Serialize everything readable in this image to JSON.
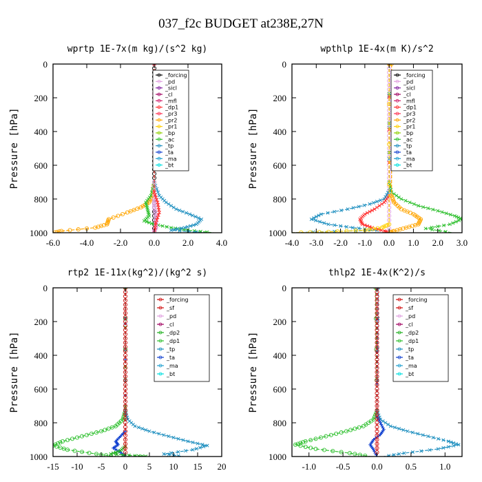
{
  "figure_title": "037_f2c  BUDGET at238E,27N",
  "colors": {
    "forcing": "#000000",
    "pd": "#e0a0e0",
    "sicl": "#8020a0",
    "cl": "#a00060",
    "mfl": "#d0206b",
    "dp1": "#ff3030",
    "pr3": "#ff3050",
    "pr2": "#ffa500",
    "pr1": "#ffd000",
    "bp": "#90d000",
    "ac": "#30c030",
    "tp": "#2090c0",
    "ta": "#1040d0",
    "ma": "#20a0d0",
    "bt": "#00e0e0",
    "dp2": "#20b020",
    "sf": "#d01010"
  },
  "chart_data": [
    {
      "id": "wprtp",
      "type": "line",
      "title": "wprtp   1E-7x(m kg)/(s^2 kg)",
      "ylabel": "Pressure [hPa]",
      "xlim": [
        -6,
        4
      ],
      "ylim": [
        1000,
        0
      ],
      "xticks": [
        "-6.0",
        "-4.0",
        "-2.0",
        "0.0",
        "2.0",
        "4.0"
      ],
      "xtick_values": [
        -6,
        -4,
        -2,
        0,
        2,
        4
      ],
      "yticks": [
        "0",
        "200",
        "400",
        "600",
        "800",
        "1000"
      ],
      "ytick_values": [
        0,
        200,
        400,
        600,
        800,
        1000
      ],
      "legend": [
        "_forcing",
        "_pd",
        "_sicl",
        "_cl",
        "_mfl",
        "_dp1",
        "_pr3",
        "_pr2",
        "_pr1",
        "_bp",
        "_ac",
        "_tp",
        "_ta",
        "_ma",
        "_bt"
      ],
      "series": [
        {
          "name": "_forcing",
          "color": "#000000",
          "marker": "circle",
          "x": [
            0.0,
            0.0,
            0.0,
            0.0,
            0.0,
            0.0,
            0.0,
            0.0,
            0.0,
            0.0,
            0.0
          ],
          "y": [
            0,
            100,
            200,
            300,
            400,
            500,
            600,
            700,
            800,
            900,
            1000
          ]
        },
        {
          "name": "_pr2",
          "color": "#ffa500",
          "marker": "circle",
          "x": [
            0.0,
            0.0,
            -0.1,
            -0.3,
            -0.8,
            -1.6,
            -2.7,
            -2.8,
            -3.5,
            -5.5,
            -6.0
          ],
          "y": [
            0,
            700,
            780,
            820,
            850,
            880,
            920,
            950,
            970,
            990,
            1000
          ]
        },
        {
          "name": "_ac",
          "color": "#30c030",
          "marker": "x",
          "x": [
            0.0,
            0.0,
            -0.2,
            -0.5,
            -0.4,
            -0.3,
            -0.6,
            0.0,
            1.0,
            2.0,
            3.5
          ],
          "y": [
            0,
            700,
            780,
            820,
            860,
            900,
            930,
            950,
            970,
            985,
            1000
          ]
        },
        {
          "name": "_tp",
          "color": "#2090c0",
          "marker": "x",
          "x": [
            0.0,
            0.0,
            0.3,
            0.7,
            1.3,
            2.1,
            2.8,
            2.5,
            1.8,
            1.0,
            3.0
          ],
          "y": [
            0,
            700,
            780,
            820,
            860,
            890,
            920,
            950,
            970,
            985,
            1000
          ]
        },
        {
          "name": "_pd",
          "color": "#e0a0e0",
          "marker": "circle",
          "x": [
            0.0,
            0.0,
            0.0,
            0.0,
            0.1,
            0.1,
            0.1,
            0.0,
            0.0
          ],
          "y": [
            0,
            700,
            800,
            850,
            900,
            940,
            970,
            990,
            1000
          ]
        },
        {
          "name": "_dp1",
          "color": "#ff3030",
          "marker": "x",
          "x": [
            0.0,
            0.0,
            0.2,
            0.3,
            0.1,
            0.0
          ],
          "y": [
            0,
            760,
            820,
            880,
            940,
            1000
          ]
        }
      ]
    },
    {
      "id": "wpthlp",
      "type": "line",
      "title": "wpthlp   1E-4x(m K)/s^2",
      "ylabel": "Pressure [hPa]",
      "xlim": [
        -4,
        3
      ],
      "ylim": [
        1000,
        0
      ],
      "xticks": [
        "-4.0",
        "-3.0",
        "-2.0",
        "-1.0",
        "0.0",
        "1.0",
        "2.0",
        "3.0"
      ],
      "xtick_values": [
        -4,
        -3,
        -2,
        -1,
        0,
        1,
        2,
        3
      ],
      "yticks": [
        "0",
        "200",
        "400",
        "600",
        "800",
        "1000"
      ],
      "ytick_values": [
        0,
        200,
        400,
        600,
        800,
        1000
      ],
      "legend": [
        "_forcing",
        "_pd",
        "_sicl",
        "_cl",
        "_mfl",
        "_dp1",
        "_pr3",
        "_pr2",
        "_pr1",
        "_bp",
        "_ac",
        "_tp",
        "_ta",
        "_ma",
        "_bt"
      ],
      "series": [
        {
          "name": "_pd",
          "color": "#e0a0e0",
          "marker": "circle",
          "x": [
            0.0,
            0.0,
            0.0,
            0.0,
            0.0,
            0.0,
            0.0,
            0.0,
            0.0,
            0.0,
            0.0
          ],
          "y": [
            0,
            100,
            200,
            300,
            400,
            500,
            600,
            700,
            800,
            900,
            1000
          ]
        },
        {
          "name": "_ac",
          "color": "#30c030",
          "marker": "x",
          "x": [
            0.0,
            0.0,
            0.1,
            0.5,
            1.2,
            2.0,
            2.7,
            3.0,
            2.5,
            1.5,
            2.6
          ],
          "y": [
            0,
            700,
            760,
            800,
            840,
            870,
            900,
            920,
            950,
            975,
            1000
          ]
        },
        {
          "name": "_tp",
          "color": "#2090c0",
          "marker": "x",
          "x": [
            0.0,
            0.0,
            -0.2,
            -0.8,
            -1.7,
            -2.8,
            -3.2,
            -2.5,
            -1.5,
            -0.5,
            -4.0
          ],
          "y": [
            0,
            750,
            800,
            830,
            860,
            890,
            920,
            950,
            970,
            985,
            1000
          ]
        },
        {
          "name": "_dp1",
          "color": "#ff3030",
          "marker": "x",
          "x": [
            0.0,
            0.0,
            -0.2,
            -0.6,
            -1.0,
            -1.2,
            -1.1,
            -0.7,
            -0.2,
            0.0
          ],
          "y": [
            0,
            780,
            820,
            860,
            890,
            920,
            950,
            970,
            990,
            1000
          ]
        },
        {
          "name": "_pr2",
          "color": "#ffa500",
          "marker": "circle",
          "x": [
            0.1,
            0.1,
            0.2,
            0.5,
            1.0,
            1.3,
            1.2,
            0.7,
            0.2,
            0.0
          ],
          "y": [
            0,
            780,
            820,
            860,
            890,
            920,
            950,
            970,
            990,
            1000
          ]
        },
        {
          "name": "_pr1",
          "color": "#ffd000",
          "marker": "circle",
          "x": [
            0.0,
            0.0,
            -0.3,
            -1.0,
            -2.5,
            -4.0
          ],
          "y": [
            0,
            950,
            970,
            985,
            995,
            1000
          ]
        }
      ]
    },
    {
      "id": "rtp2",
      "type": "line",
      "title": "rtp2   1E-11x(kg^2)/(kg^2 s)",
      "ylabel": "Pressure [hPa]",
      "xlim": [
        -15,
        20
      ],
      "ylim": [
        1000,
        0
      ],
      "xticks": [
        "-15",
        "-10",
        "-5",
        "0",
        "5",
        "10",
        "15",
        "20"
      ],
      "xtick_values": [
        -15,
        -10,
        -5,
        0,
        5,
        10,
        15,
        20
      ],
      "yticks": [
        "0",
        "200",
        "400",
        "600",
        "800",
        "1000"
      ],
      "ytick_values": [
        0,
        200,
        400,
        600,
        800,
        1000
      ],
      "legend": [
        "_forcing",
        "_sf",
        "_pd",
        "_cl",
        "_dp2",
        "_dp1",
        "_tp",
        "_ta",
        "_ma",
        "_bt"
      ],
      "series": [
        {
          "name": "_dp1",
          "color": "#30c030",
          "marker": "circle",
          "x": [
            0.0,
            0.0,
            -0.5,
            -2.0,
            -5.0,
            -9.0,
            -13.0,
            -15.0,
            -12.0,
            -6.0,
            -2.0
          ],
          "y": [
            0,
            730,
            780,
            820,
            850,
            880,
            910,
            935,
            960,
            985,
            1000
          ]
        },
        {
          "name": "_tp",
          "color": "#2090c0",
          "marker": "x",
          "x": [
            0.0,
            0.0,
            0.5,
            2.0,
            5.0,
            9.0,
            13.0,
            17.0,
            14.0,
            8.0,
            12.0
          ],
          "y": [
            0,
            730,
            780,
            820,
            850,
            880,
            910,
            935,
            960,
            985,
            1000
          ]
        },
        {
          "name": "_ta",
          "color": "#1040d0",
          "marker": "plus",
          "x": [
            0.0,
            0.0,
            -1.0,
            -2.0,
            -1.5,
            -2.5,
            -1.0,
            0.0
          ],
          "y": [
            0,
            850,
            880,
            910,
            930,
            950,
            975,
            1000
          ]
        },
        {
          "name": "_dp2",
          "color": "#20b020",
          "marker": "x",
          "x": [
            0.0,
            0.0,
            -1.0,
            -3.0,
            2.0,
            5.0
          ],
          "y": [
            0,
            940,
            965,
            985,
            995,
            1000
          ]
        },
        {
          "name": "_forcing",
          "color": "#d01010",
          "marker": "circle",
          "x": [
            0.0,
            0.0,
            0.0,
            0.0,
            0.0,
            0.0,
            0.0,
            0.0,
            0.0,
            0.0,
            0.0
          ],
          "y": [
            0,
            100,
            200,
            300,
            400,
            500,
            600,
            700,
            800,
            900,
            1000
          ]
        }
      ]
    },
    {
      "id": "thlp2",
      "type": "line",
      "title": "thlp2   1E-4x(K^2)/s",
      "ylabel": "Pressure [hPa]",
      "xlim": [
        -1.25,
        1.25
      ],
      "ylim": [
        1000,
        0
      ],
      "xticks": [
        "-1.0",
        "-0.5",
        "0.0",
        "0.5",
        "1.0"
      ],
      "xtick_values": [
        -1.0,
        -0.5,
        0.0,
        0.5,
        1.0
      ],
      "yticks": [
        "0",
        "200",
        "400",
        "600",
        "800",
        "1000"
      ],
      "ytick_values": [
        0,
        200,
        400,
        600,
        800,
        1000
      ],
      "legend": [
        "_forcing",
        "_sf",
        "_pd",
        "_cl",
        "_dp2",
        "_dp1",
        "_tp",
        "_ta",
        "_ma",
        "_bt"
      ],
      "series": [
        {
          "name": "_dp1",
          "color": "#30c030",
          "marker": "circle",
          "x": [
            -0.02,
            0.0,
            -0.05,
            -0.2,
            -0.45,
            -0.75,
            -1.05,
            -1.2,
            -0.9,
            -0.4,
            -0.1
          ],
          "y": [
            0,
            730,
            780,
            820,
            850,
            880,
            910,
            930,
            955,
            980,
            1000
          ]
        },
        {
          "name": "_tp",
          "color": "#2090c0",
          "marker": "x",
          "x": [
            0.02,
            0.0,
            0.05,
            0.2,
            0.45,
            0.75,
            1.05,
            1.2,
            0.9,
            0.4,
            0.1
          ],
          "y": [
            0,
            730,
            780,
            820,
            850,
            880,
            910,
            930,
            955,
            980,
            1000
          ]
        },
        {
          "name": "_ta",
          "color": "#1040d0",
          "marker": "plus",
          "x": [
            0.0,
            0.0,
            0.05,
            0.1,
            0.05,
            -0.05,
            -0.1,
            -0.05,
            0.0
          ],
          "y": [
            0,
            760,
            800,
            840,
            870,
            900,
            930,
            960,
            1000
          ]
        },
        {
          "name": "_forcing",
          "color": "#d01010",
          "marker": "circle",
          "x": [
            0.0,
            0.0,
            0.0,
            0.0,
            0.0,
            0.0,
            0.0,
            0.0,
            0.0,
            0.0,
            0.0
          ],
          "y": [
            0,
            100,
            200,
            300,
            400,
            500,
            600,
            700,
            800,
            900,
            1000
          ]
        }
      ]
    }
  ]
}
